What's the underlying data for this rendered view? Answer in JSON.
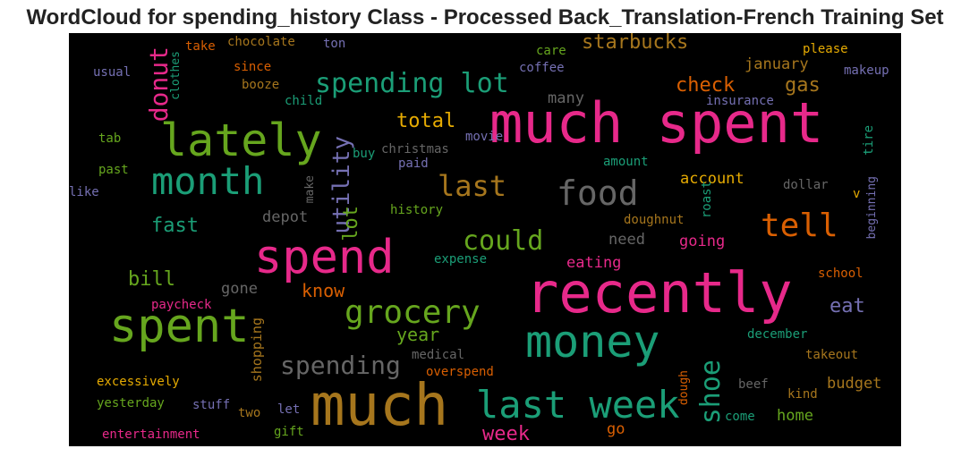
{
  "title": "WordCloud for spending_history Class - Processed Back_Translation-French Training Set",
  "colors": {
    "background": "#000000",
    "palette": [
      "#1b9e77",
      "#d95f02",
      "#7570b3",
      "#e7298a",
      "#66a61e",
      "#e6ab02",
      "#a6761d",
      "#666666"
    ]
  },
  "words": [
    {
      "text": "much spent",
      "color": "#e7298a"
    },
    {
      "text": "recently",
      "color": "#e7298a"
    },
    {
      "text": "much",
      "color": "#a6761d"
    },
    {
      "text": "lately",
      "color": "#66a61e"
    },
    {
      "text": "spend",
      "color": "#e7298a"
    },
    {
      "text": "money",
      "color": "#1b9e77"
    },
    {
      "text": "spent",
      "color": "#66a61e"
    },
    {
      "text": "last week",
      "color": "#1b9e77"
    },
    {
      "text": "month",
      "color": "#1b9e77"
    },
    {
      "text": "food",
      "color": "#666666"
    },
    {
      "text": "grocery",
      "color": "#66a61e"
    },
    {
      "text": "spending lot",
      "color": "#1b9e77"
    },
    {
      "text": "tell",
      "color": "#d95f02"
    },
    {
      "text": "spending",
      "color": "#666666"
    },
    {
      "text": "last",
      "color": "#a6761d"
    },
    {
      "text": "could",
      "color": "#66a61e"
    },
    {
      "text": "donut",
      "color": "#e7298a"
    },
    {
      "text": "utility",
      "color": "#7570b3"
    },
    {
      "text": "shoe",
      "color": "#1b9e77"
    },
    {
      "text": "starbucks",
      "color": "#a6761d"
    },
    {
      "text": "check",
      "color": "#d95f02"
    },
    {
      "text": "gas",
      "color": "#a6761d"
    },
    {
      "text": "total",
      "color": "#e6ab02"
    },
    {
      "text": "fast",
      "color": "#1b9e77"
    },
    {
      "text": "bill",
      "color": "#66a61e"
    },
    {
      "text": "lot",
      "color": "#66a61e"
    },
    {
      "text": "week",
      "color": "#e7298a"
    },
    {
      "text": "year",
      "color": "#66a61e"
    },
    {
      "text": "know",
      "color": "#d95f02"
    },
    {
      "text": "eat",
      "color": "#7570b3"
    },
    {
      "text": "account",
      "color": "#e6ab02"
    },
    {
      "text": "january",
      "color": "#a6761d"
    },
    {
      "text": "many",
      "color": "#666666"
    },
    {
      "text": "depot",
      "color": "#666666"
    },
    {
      "text": "going",
      "color": "#e7298a"
    },
    {
      "text": "need",
      "color": "#666666"
    },
    {
      "text": "eating",
      "color": "#e7298a"
    },
    {
      "text": "home",
      "color": "#66a61e"
    },
    {
      "text": "budget",
      "color": "#a6761d"
    },
    {
      "text": "gone",
      "color": "#666666"
    },
    {
      "text": "shopping",
      "color": "#a6761d"
    },
    {
      "text": "go",
      "color": "#d95f02"
    },
    {
      "text": "chocolate",
      "color": "#a6761d"
    },
    {
      "text": "take",
      "color": "#d95f02"
    },
    {
      "text": "ton",
      "color": "#7570b3"
    },
    {
      "text": "care",
      "color": "#66a61e"
    },
    {
      "text": "please",
      "color": "#e6ab02"
    },
    {
      "text": "coffee",
      "color": "#7570b3"
    },
    {
      "text": "makeup",
      "color": "#7570b3"
    },
    {
      "text": "since",
      "color": "#d95f02"
    },
    {
      "text": "usual",
      "color": "#7570b3"
    },
    {
      "text": "clothes",
      "color": "#1b9e77"
    },
    {
      "text": "booze",
      "color": "#a6761d"
    },
    {
      "text": "child",
      "color": "#1b9e77"
    },
    {
      "text": "insurance",
      "color": "#7570b3"
    },
    {
      "text": "tab",
      "color": "#66a61e"
    },
    {
      "text": "movie",
      "color": "#7570b3"
    },
    {
      "text": "christmas",
      "color": "#666666"
    },
    {
      "text": "buy",
      "color": "#1b9e77"
    },
    {
      "text": "paid",
      "color": "#7570b3"
    },
    {
      "text": "tire",
      "color": "#1b9e77"
    },
    {
      "text": "past",
      "color": "#66a61e"
    },
    {
      "text": "amount",
      "color": "#1b9e77"
    },
    {
      "text": "make",
      "color": "#666666"
    },
    {
      "text": "like",
      "color": "#7570b3"
    },
    {
      "text": "roast",
      "color": "#1b9e77"
    },
    {
      "text": "dollar",
      "color": "#666666"
    },
    {
      "text": "v",
      "color": "#e6ab02"
    },
    {
      "text": "history",
      "color": "#66a61e"
    },
    {
      "text": "doughnut",
      "color": "#a6761d"
    },
    {
      "text": "beginning",
      "color": "#7570b3"
    },
    {
      "text": "expense",
      "color": "#1b9e77"
    },
    {
      "text": "school",
      "color": "#d95f02"
    },
    {
      "text": "paycheck",
      "color": "#e7298a"
    },
    {
      "text": "medical",
      "color": "#666666"
    },
    {
      "text": "december",
      "color": "#1b9e77"
    },
    {
      "text": "takeout",
      "color": "#a6761d"
    },
    {
      "text": "overspend",
      "color": "#d95f02"
    },
    {
      "text": "dough",
      "color": "#d95f02"
    },
    {
      "text": "excessively",
      "color": "#e6ab02"
    },
    {
      "text": "beef",
      "color": "#666666"
    },
    {
      "text": "kind",
      "color": "#a6761d"
    },
    {
      "text": "yesterday",
      "color": "#66a61e"
    },
    {
      "text": "stuff",
      "color": "#7570b3"
    },
    {
      "text": "two",
      "color": "#a6761d"
    },
    {
      "text": "let",
      "color": "#7570b3"
    },
    {
      "text": "come",
      "color": "#1b9e77"
    },
    {
      "text": "entertainment",
      "color": "#e7298a"
    },
    {
      "text": "gift",
      "color": "#66a61e"
    }
  ]
}
